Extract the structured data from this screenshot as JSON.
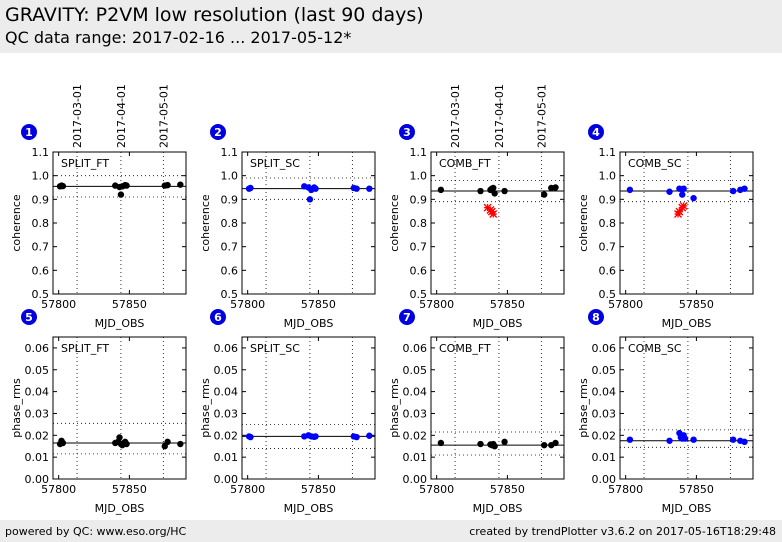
{
  "header": {
    "title": "GRAVITY: P2VM low resolution (last 90 days)",
    "subtitle": "QC data range: 2017-02-16 ... 2017-05-12*"
  },
  "footer": {
    "left": "powered by QC: www.eso.org/HC",
    "right": "created by trendPlotter v3.6.2 on 2017-05-16T18:29:48"
  },
  "date_markers": {
    "labels": [
      "2017-03-01",
      "2017-04-01",
      "2017-05-01"
    ],
    "mjd": [
      57813,
      57844,
      57874
    ]
  },
  "colors": {
    "ft": "#000000",
    "sc": "#0000ff",
    "outlier": "#ff0000"
  },
  "chart_data": [
    {
      "id": 1,
      "type": "scatter",
      "label": "SPLIT_FT",
      "xlabel": "MJD_OBS",
      "ylabel": "coherence",
      "xlim": [
        57796,
        57890
      ],
      "ylim": [
        0.5,
        1.1
      ],
      "xticks": [
        57800,
        57850
      ],
      "yticks": [
        0.5,
        0.6,
        0.7,
        0.8,
        0.9,
        1.0,
        1.1
      ],
      "reference": 0.955,
      "band": [
        0.91,
        1.0
      ],
      "color": "ft",
      "show_dates": true,
      "points": [
        [
          57801,
          0.955
        ],
        [
          57802,
          0.958
        ],
        [
          57803,
          0.956
        ],
        [
          57840,
          0.958
        ],
        [
          57843,
          0.952
        ],
        [
          57845,
          0.955
        ],
        [
          57844,
          0.92
        ],
        [
          57847,
          0.96
        ],
        [
          57848,
          0.958
        ],
        [
          57875,
          0.958
        ],
        [
          57877,
          0.96
        ],
        [
          57886,
          0.962
        ]
      ],
      "outliers": []
    },
    {
      "id": 2,
      "type": "scatter",
      "label": "SPLIT_SC",
      "xlabel": "MJD_OBS",
      "ylabel": "coherence",
      "xlim": [
        57796,
        57890
      ],
      "ylim": [
        0.5,
        1.1
      ],
      "xticks": [
        57800,
        57850
      ],
      "yticks": [
        0.5,
        0.6,
        0.7,
        0.8,
        0.9,
        1.0,
        1.1
      ],
      "reference": 0.945,
      "band": [
        0.9,
        0.99
      ],
      "color": "sc",
      "show_dates": false,
      "points": [
        [
          57801,
          0.945
        ],
        [
          57802,
          0.948
        ],
        [
          57840,
          0.955
        ],
        [
          57843,
          0.95
        ],
        [
          57845,
          0.94
        ],
        [
          57844,
          0.9
        ],
        [
          57847,
          0.95
        ],
        [
          57848,
          0.945
        ],
        [
          57875,
          0.948
        ],
        [
          57877,
          0.945
        ],
        [
          57886,
          0.945
        ]
      ],
      "outliers": []
    },
    {
      "id": 3,
      "type": "scatter",
      "label": "COMB_FT",
      "xlabel": "MJD_OBS",
      "ylabel": "coherence",
      "xlim": [
        57796,
        57890
      ],
      "ylim": [
        0.5,
        1.1
      ],
      "xticks": [
        57800,
        57850
      ],
      "yticks": [
        0.5,
        0.6,
        0.7,
        0.8,
        0.9,
        1.0,
        1.1
      ],
      "reference": 0.935,
      "band": [
        0.89,
        0.98
      ],
      "color": "ft",
      "show_dates": true,
      "points": [
        [
          57803,
          0.94
        ],
        [
          57831,
          0.935
        ],
        [
          57838,
          0.94
        ],
        [
          57839,
          0.945
        ],
        [
          57840,
          0.948
        ],
        [
          57841,
          0.925
        ],
        [
          57848,
          0.935
        ],
        [
          57876,
          0.92
        ],
        [
          57881,
          0.948
        ],
        [
          57884,
          0.95
        ]
      ],
      "outliers": [
        [
          57836,
          0.865
        ],
        [
          57838,
          0.855
        ],
        [
          57839,
          0.848
        ],
        [
          57840,
          0.838
        ]
      ]
    },
    {
      "id": 4,
      "type": "scatter",
      "label": "COMB_SC",
      "xlabel": "MJD_OBS",
      "ylabel": "coherence",
      "xlim": [
        57796,
        57890
      ],
      "ylim": [
        0.5,
        1.1
      ],
      "xticks": [
        57800,
        57850
      ],
      "yticks": [
        0.5,
        0.6,
        0.7,
        0.8,
        0.9,
        1.0,
        1.1
      ],
      "reference": 0.935,
      "band": [
        0.89,
        0.98
      ],
      "color": "sc",
      "show_dates": false,
      "points": [
        [
          57803,
          0.94
        ],
        [
          57831,
          0.932
        ],
        [
          57838,
          0.945
        ],
        [
          57840,
          0.942
        ],
        [
          57841,
          0.945
        ],
        [
          57840,
          0.92
        ],
        [
          57848,
          0.905
        ],
        [
          57876,
          0.935
        ],
        [
          57881,
          0.94
        ],
        [
          57884,
          0.945
        ]
      ],
      "outliers": [
        [
          57837,
          0.838
        ],
        [
          57838,
          0.848
        ],
        [
          57840,
          0.865
        ],
        [
          57841,
          0.872
        ]
      ]
    },
    {
      "id": 5,
      "type": "scatter",
      "label": "SPLIT_FT",
      "xlabel": "MJD_OBS",
      "ylabel": "phase_rms",
      "xlim": [
        57796,
        57890
      ],
      "ylim": [
        0.0,
        0.065
      ],
      "xticks": [
        57800,
        57850
      ],
      "yticks": [
        0.0,
        0.01,
        0.02,
        0.03,
        0.04,
        0.05,
        0.06
      ],
      "reference": 0.0165,
      "band": [
        0.0115,
        0.0255
      ],
      "color": "ft",
      "show_dates": false,
      "points": [
        [
          57801,
          0.016
        ],
        [
          57802,
          0.0175
        ],
        [
          57803,
          0.0165
        ],
        [
          57840,
          0.0165
        ],
        [
          57842,
          0.017
        ],
        [
          57843,
          0.019
        ],
        [
          57844,
          0.016
        ],
        [
          57845,
          0.0155
        ],
        [
          57846,
          0.0165
        ],
        [
          57847,
          0.017
        ],
        [
          57848,
          0.016
        ],
        [
          57875,
          0.015
        ],
        [
          57877,
          0.017
        ],
        [
          57886,
          0.016
        ]
      ],
      "outliers": []
    },
    {
      "id": 6,
      "type": "scatter",
      "label": "SPLIT_SC",
      "xlabel": "MJD_OBS",
      "ylabel": "phase_rms",
      "xlim": [
        57796,
        57890
      ],
      "ylim": [
        0.0,
        0.065
      ],
      "xticks": [
        57800,
        57850
      ],
      "yticks": [
        0.0,
        0.01,
        0.02,
        0.03,
        0.04,
        0.05,
        0.06
      ],
      "reference": 0.0195,
      "band": [
        0.014,
        0.025
      ],
      "color": "sc",
      "show_dates": false,
      "points": [
        [
          57801,
          0.0195
        ],
        [
          57802,
          0.0192
        ],
        [
          57840,
          0.0195
        ],
        [
          57843,
          0.02
        ],
        [
          57845,
          0.0195
        ],
        [
          57847,
          0.0193
        ],
        [
          57848,
          0.0195
        ],
        [
          57875,
          0.0195
        ],
        [
          57877,
          0.0192
        ],
        [
          57886,
          0.0198
        ]
      ],
      "outliers": []
    },
    {
      "id": 7,
      "type": "scatter",
      "label": "COMB_FT",
      "xlabel": "MJD_OBS",
      "ylabel": "phase_rms",
      "xlim": [
        57796,
        57890
      ],
      "ylim": [
        0.0,
        0.065
      ],
      "xticks": [
        57800,
        57850
      ],
      "yticks": [
        0.0,
        0.01,
        0.02,
        0.03,
        0.04,
        0.05,
        0.06
      ],
      "reference": 0.0155,
      "band": [
        0.011,
        0.0215
      ],
      "color": "ft",
      "show_dates": false,
      "points": [
        [
          57803,
          0.0165
        ],
        [
          57831,
          0.016
        ],
        [
          57838,
          0.0158
        ],
        [
          57839,
          0.0155
        ],
        [
          57840,
          0.016
        ],
        [
          57841,
          0.015
        ],
        [
          57848,
          0.017
        ],
        [
          57876,
          0.0155
        ],
        [
          57881,
          0.0155
        ],
        [
          57884,
          0.0165
        ]
      ],
      "outliers": []
    },
    {
      "id": 8,
      "type": "scatter",
      "label": "COMB_SC",
      "xlabel": "MJD_OBS",
      "ylabel": "phase_rms",
      "xlim": [
        57796,
        57890
      ],
      "ylim": [
        0.0,
        0.065
      ],
      "xticks": [
        57800,
        57850
      ],
      "yticks": [
        0.0,
        0.01,
        0.02,
        0.03,
        0.04,
        0.05,
        0.06
      ],
      "reference": 0.0175,
      "band": [
        0.0145,
        0.0225
      ],
      "color": "sc",
      "show_dates": false,
      "points": [
        [
          57803,
          0.018
        ],
        [
          57831,
          0.0175
        ],
        [
          57838,
          0.021
        ],
        [
          57839,
          0.019
        ],
        [
          57840,
          0.0185
        ],
        [
          57841,
          0.02
        ],
        [
          57842,
          0.0185
        ],
        [
          57848,
          0.018
        ],
        [
          57876,
          0.018
        ],
        [
          57881,
          0.0175
        ],
        [
          57884,
          0.017
        ]
      ],
      "outliers": []
    }
  ]
}
